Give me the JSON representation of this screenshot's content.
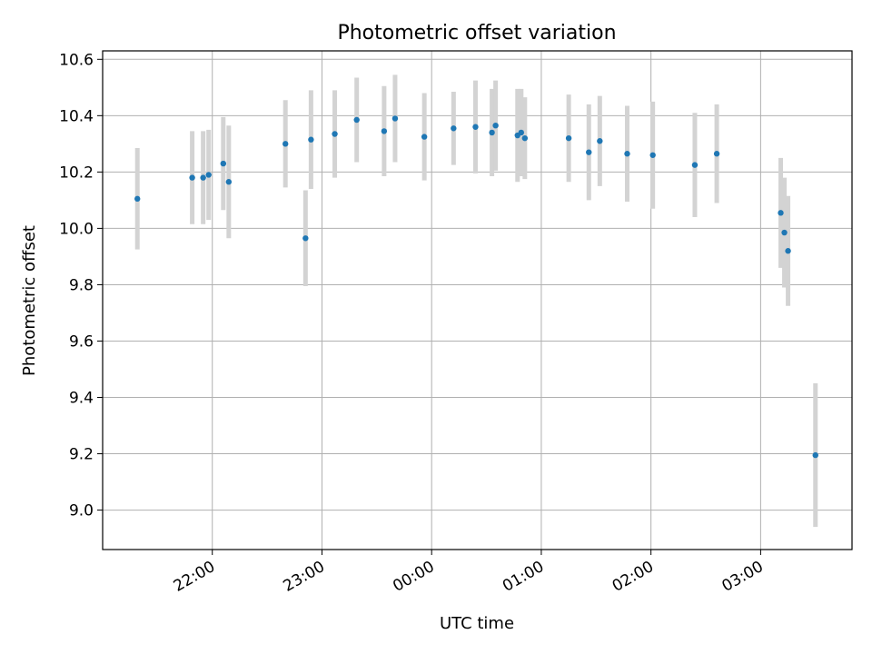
{
  "chart_data": {
    "type": "scatter",
    "title": "Photometric offset variation",
    "xlabel": "UTC time",
    "ylabel": "Photometric offset",
    "grid": true,
    "legend": "none",
    "point_color": "#1f77b4",
    "errorbar_color": "#d3d3d3",
    "x_unit": "UTC time (HH:MM)",
    "xlim": [
      "21:00",
      "03:50"
    ],
    "ylim": [
      8.86,
      10.63
    ],
    "xticks": [
      "22:00",
      "23:00",
      "00:00",
      "01:00",
      "02:00",
      "03:00"
    ],
    "yticks": [
      "9.0",
      "9.2",
      "9.4",
      "9.6",
      "9.8",
      "10.0",
      "10.2",
      "10.4",
      "10.6"
    ],
    "points": [
      {
        "time": "21:19",
        "y": 10.105,
        "err": 0.18
      },
      {
        "time": "21:49",
        "y": 10.18,
        "err": 0.165
      },
      {
        "time": "21:55",
        "y": 10.18,
        "err": 0.165
      },
      {
        "time": "21:58",
        "y": 10.19,
        "err": 0.16
      },
      {
        "time": "22:06",
        "y": 10.23,
        "err": 0.165
      },
      {
        "time": "22:09",
        "y": 10.165,
        "err": 0.2
      },
      {
        "time": "22:40",
        "y": 10.3,
        "err": 0.155
      },
      {
        "time": "22:51",
        "y": 9.965,
        "err": 0.17
      },
      {
        "time": "22:54",
        "y": 10.315,
        "err": 0.175
      },
      {
        "time": "23:07",
        "y": 10.335,
        "err": 0.155
      },
      {
        "time": "23:19",
        "y": 10.385,
        "err": 0.15
      },
      {
        "time": "23:34",
        "y": 10.345,
        "err": 0.16
      },
      {
        "time": "23:40",
        "y": 10.39,
        "err": 0.155
      },
      {
        "time": "23:56",
        "y": 10.325,
        "err": 0.155
      },
      {
        "time": "00:12",
        "y": 10.355,
        "err": 0.13
      },
      {
        "time": "00:24",
        "y": 10.36,
        "err": 0.165
      },
      {
        "time": "00:33",
        "y": 10.34,
        "err": 0.155
      },
      {
        "time": "00:35",
        "y": 10.365,
        "err": 0.16
      },
      {
        "time": "00:47",
        "y": 10.33,
        "err": 0.165
      },
      {
        "time": "00:49",
        "y": 10.34,
        "err": 0.155
      },
      {
        "time": "00:51",
        "y": 10.32,
        "err": 0.145
      },
      {
        "time": "01:15",
        "y": 10.32,
        "err": 0.155
      },
      {
        "time": "01:26",
        "y": 10.27,
        "err": 0.17
      },
      {
        "time": "01:32",
        "y": 10.31,
        "err": 0.16
      },
      {
        "time": "01:47",
        "y": 10.265,
        "err": 0.17
      },
      {
        "time": "02:01",
        "y": 10.26,
        "err": 0.19
      },
      {
        "time": "02:24",
        "y": 10.225,
        "err": 0.185
      },
      {
        "time": "02:36",
        "y": 10.265,
        "err": 0.175
      },
      {
        "time": "03:11",
        "y": 10.055,
        "err": 0.195
      },
      {
        "time": "03:13",
        "y": 9.985,
        "err": 0.195
      },
      {
        "time": "03:15",
        "y": 9.92,
        "err": 0.195
      },
      {
        "time": "03:30",
        "y": 9.195,
        "err": 0.255
      }
    ]
  }
}
